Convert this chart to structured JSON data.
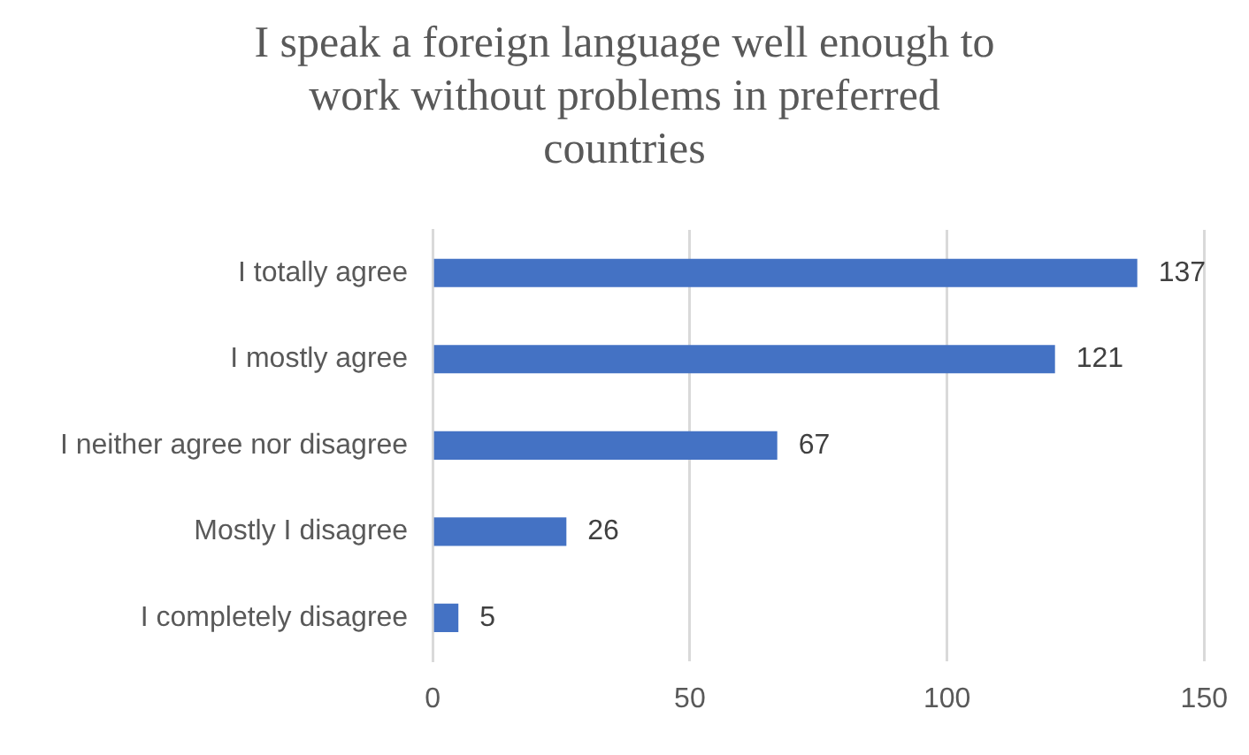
{
  "chart_data": {
    "type": "bar",
    "orientation": "horizontal",
    "title": "I speak a foreign language well enough to work without problems in preferred countries",
    "categories": [
      "I totally agree",
      "I mostly agree",
      "I neither agree nor disagree",
      "Mostly I disagree",
      "I completely disagree"
    ],
    "values": [
      137,
      121,
      67,
      26,
      5
    ],
    "color": "#4472c4",
    "xlim": [
      0,
      150
    ],
    "xticks": [
      0,
      50,
      100,
      150
    ],
    "grid": "x",
    "data_labels": true
  }
}
